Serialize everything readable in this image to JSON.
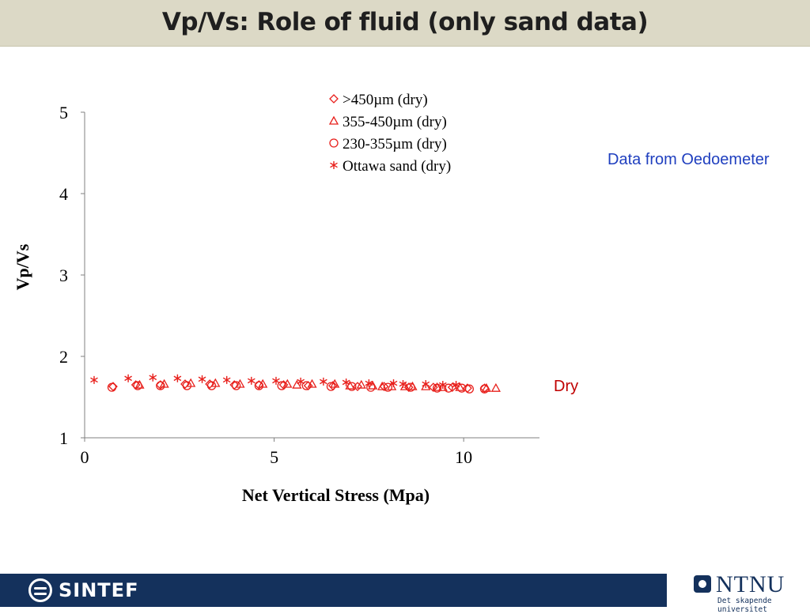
{
  "slide": {
    "title": "Vp/Vs: Role of fluid (only sand data)",
    "note_source": "Data from Oedoemeter",
    "note_dry": "Dry"
  },
  "footer": {
    "left_logo_text": "SINTEF",
    "right_logo_text": "NTNU",
    "right_logo_subtext": "Det skapende universitet"
  },
  "colors": {
    "marker": "#e8201c",
    "axis": "#808080",
    "title_band": "#dcd9c6",
    "footer_band": "#14315c",
    "note_source": "#1f3fbf",
    "note_dry": "#c00000"
  },
  "chart_data": {
    "type": "scatter",
    "title": "",
    "xlabel": "Net Vertical Stress (Mpa)",
    "ylabel": "Vp/Vs",
    "xlim": [
      0,
      12
    ],
    "ylim": [
      1,
      5
    ],
    "xticks": [
      0,
      5,
      10
    ],
    "yticks": [
      1,
      2,
      3,
      4,
      5
    ],
    "grid": false,
    "legend_position": "top-center",
    "series": [
      {
        "name": ">450µm (dry)",
        "marker": "diamond",
        "points": [
          [
            0.75,
            1.63
          ],
          [
            1.35,
            1.65
          ],
          [
            2.0,
            1.65
          ],
          [
            2.65,
            1.66
          ],
          [
            3.3,
            1.66
          ],
          [
            3.95,
            1.65
          ],
          [
            4.6,
            1.65
          ],
          [
            5.25,
            1.65
          ],
          [
            5.9,
            1.64
          ],
          [
            6.55,
            1.64
          ],
          [
            7.2,
            1.63
          ],
          [
            7.9,
            1.63
          ],
          [
            8.55,
            1.62
          ],
          [
            9.2,
            1.62
          ],
          [
            9.7,
            1.62
          ],
          [
            10.1,
            1.61
          ],
          [
            10.55,
            1.61
          ]
        ]
      },
      {
        "name": "355-450µm (dry)",
        "marker": "triangle",
        "points": [
          [
            1.45,
            1.65
          ],
          [
            2.1,
            1.66
          ],
          [
            2.8,
            1.67
          ],
          [
            3.45,
            1.67
          ],
          [
            4.1,
            1.66
          ],
          [
            4.7,
            1.66
          ],
          [
            5.35,
            1.66
          ],
          [
            5.6,
            1.65
          ],
          [
            6.0,
            1.66
          ],
          [
            6.6,
            1.66
          ],
          [
            7.0,
            1.64
          ],
          [
            7.3,
            1.65
          ],
          [
            7.6,
            1.64
          ],
          [
            7.85,
            1.63
          ],
          [
            8.1,
            1.63
          ],
          [
            8.45,
            1.63
          ],
          [
            8.65,
            1.63
          ],
          [
            9.0,
            1.63
          ],
          [
            9.3,
            1.62
          ],
          [
            9.45,
            1.62
          ],
          [
            9.9,
            1.62
          ],
          [
            10.6,
            1.61
          ],
          [
            10.85,
            1.61
          ]
        ]
      },
      {
        "name": "230-355µm (dry)",
        "marker": "circle",
        "points": [
          [
            0.72,
            1.62
          ],
          [
            1.4,
            1.64
          ],
          [
            2.0,
            1.64
          ],
          [
            2.7,
            1.64
          ],
          [
            3.35,
            1.64
          ],
          [
            4.0,
            1.64
          ],
          [
            4.6,
            1.64
          ],
          [
            5.2,
            1.64
          ],
          [
            5.85,
            1.64
          ],
          [
            6.5,
            1.63
          ],
          [
            7.05,
            1.63
          ],
          [
            7.55,
            1.62
          ],
          [
            8.0,
            1.62
          ],
          [
            8.6,
            1.62
          ],
          [
            9.3,
            1.61
          ],
          [
            9.6,
            1.61
          ],
          [
            9.95,
            1.61
          ],
          [
            10.15,
            1.6
          ],
          [
            10.55,
            1.6
          ]
        ]
      },
      {
        "name": "Ottawa sand (dry)",
        "marker": "asterisk",
        "points": [
          [
            0.25,
            1.71
          ],
          [
            1.15,
            1.73
          ],
          [
            1.8,
            1.74
          ],
          [
            2.45,
            1.73
          ],
          [
            3.1,
            1.72
          ],
          [
            3.75,
            1.71
          ],
          [
            4.4,
            1.7
          ],
          [
            5.05,
            1.7
          ],
          [
            5.7,
            1.69
          ],
          [
            6.3,
            1.69
          ],
          [
            6.9,
            1.68
          ],
          [
            7.5,
            1.67
          ],
          [
            8.15,
            1.67
          ],
          [
            8.4,
            1.66
          ],
          [
            9.0,
            1.66
          ],
          [
            9.45,
            1.65
          ],
          [
            9.8,
            1.65
          ]
        ]
      }
    ]
  }
}
